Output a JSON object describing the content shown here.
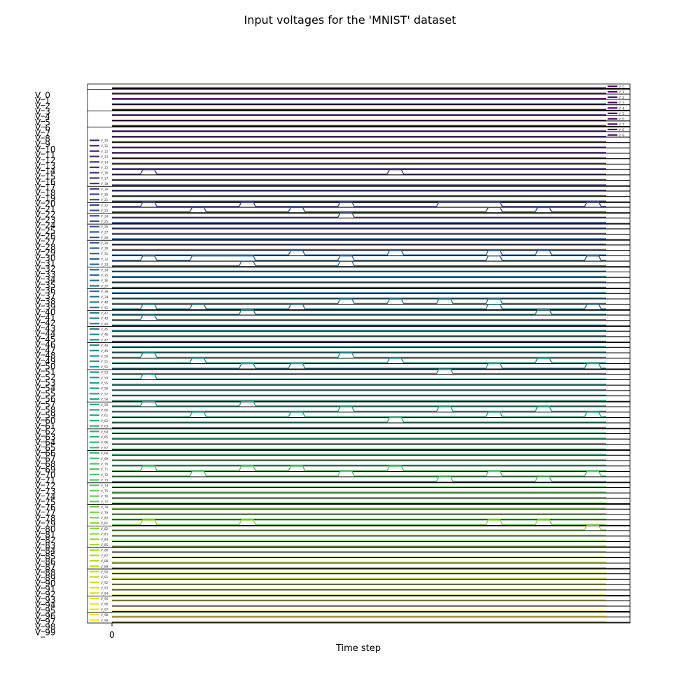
{
  "chart_data": {
    "type": "line",
    "title": "Input voltages for the 'MNIST' dataset",
    "xlabel": "Time step",
    "ylabel": "",
    "x_ticks": [
      "0"
    ],
    "grid": false,
    "legend": "each subplot: upper-left (V_0–V_8 block: upper-right)",
    "colormap": "viridis",
    "series_prefix": "V_",
    "n_series": 100,
    "n_steps": 10,
    "high_runs": {
      "16": [
        [
          1,
          1
        ],
        [
          6,
          6
        ]
      ],
      "22": [
        [
          1,
          1
        ],
        [
          3,
          3
        ],
        [
          5,
          5
        ],
        [
          7,
          8
        ],
        [
          10,
          10
        ]
      ],
      "23": [
        [
          2,
          2
        ],
        [
          4,
          4
        ],
        [
          8,
          8
        ],
        [
          9,
          9
        ]
      ],
      "24": [
        [
          5,
          5
        ]
      ],
      "31": [
        [
          4,
          4
        ],
        [
          6,
          6
        ],
        [
          8,
          8
        ],
        [
          9,
          9
        ]
      ],
      "32": [
        [
          1,
          1
        ],
        [
          2,
          3
        ],
        [
          5,
          5
        ],
        [
          8,
          8
        ],
        [
          10,
          10
        ]
      ],
      "33": [
        [
          3,
          3
        ],
        [
          5,
          5
        ]
      ],
      "40": [
        [
          5,
          5
        ],
        [
          6,
          6
        ],
        [
          7,
          7
        ],
        [
          8,
          8
        ]
      ],
      "41": [
        [
          1,
          1
        ],
        [
          2,
          2
        ],
        [
          4,
          4
        ],
        [
          8,
          8
        ],
        [
          10,
          10
        ]
      ],
      "42": [
        [
          3,
          3
        ],
        [
          9,
          9
        ]
      ],
      "43": [
        [
          1,
          1
        ]
      ],
      "50": [
        [
          1,
          1
        ],
        [
          5,
          5
        ]
      ],
      "51": [
        [
          2,
          2
        ],
        [
          6,
          6
        ],
        [
          9,
          9
        ]
      ],
      "52": [
        [
          3,
          3
        ],
        [
          4,
          4
        ],
        [
          8,
          8
        ],
        [
          10,
          10
        ]
      ],
      "53": [
        [
          7,
          7
        ]
      ],
      "54": [
        [
          1,
          1
        ]
      ],
      "59": [
        [
          1,
          1
        ],
        [
          3,
          3
        ]
      ],
      "60": [
        [
          5,
          5
        ],
        [
          7,
          7
        ],
        [
          9,
          9
        ]
      ],
      "61": [
        [
          2,
          2
        ],
        [
          4,
          4
        ],
        [
          8,
          8
        ],
        [
          10,
          10
        ]
      ],
      "62": [
        [
          6,
          6
        ]
      ],
      "71": [
        [
          1,
          1
        ],
        [
          3,
          3
        ],
        [
          4,
          4
        ],
        [
          6,
          6
        ]
      ],
      "72": [
        [
          2,
          2
        ],
        [
          5,
          5
        ],
        [
          8,
          8
        ],
        [
          10,
          10
        ]
      ],
      "73": [
        [
          7,
          7
        ],
        [
          9,
          9
        ]
      ],
      "81": [
        [
          1,
          1
        ],
        [
          3,
          3
        ],
        [
          8,
          8
        ],
        [
          9,
          9
        ]
      ],
      "82": [
        [
          10,
          10
        ]
      ]
    }
  }
}
